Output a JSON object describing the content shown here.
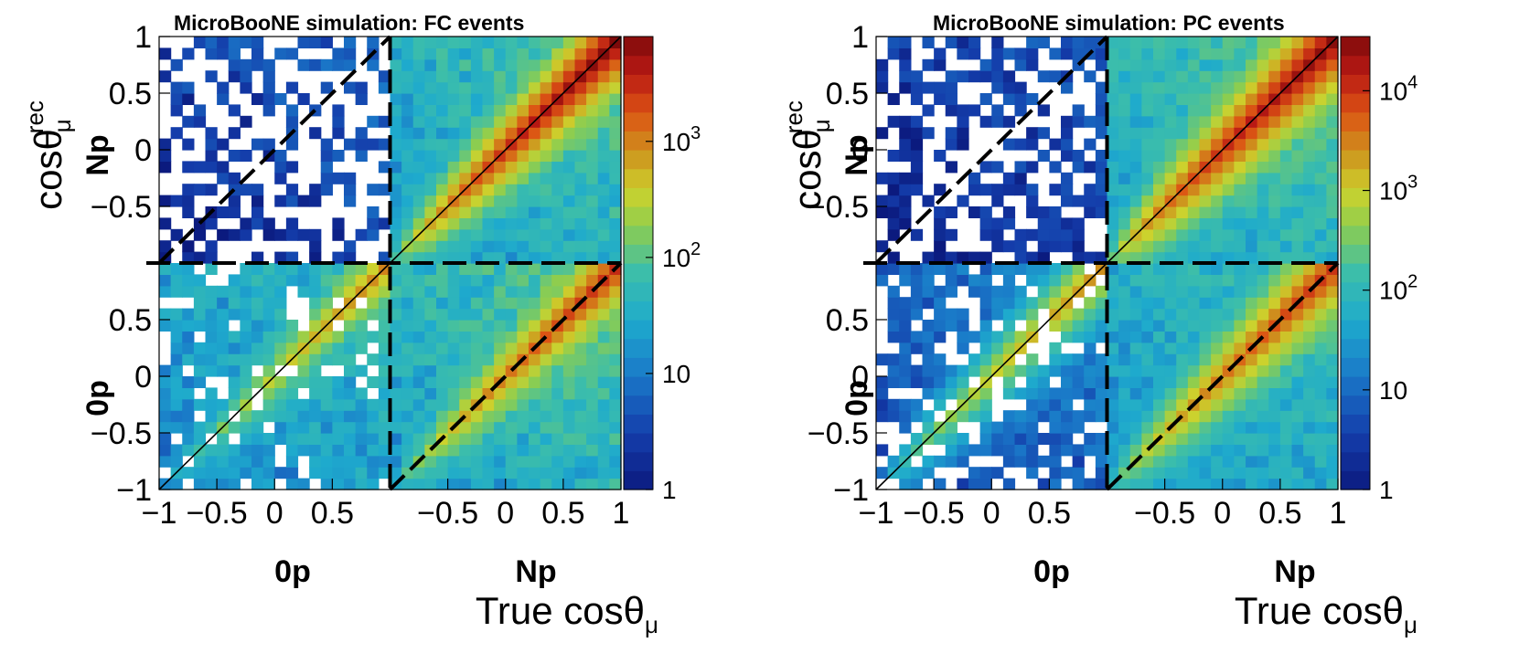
{
  "chart_data": [
    {
      "type": "heatmap",
      "title": "MicroBooNE simulation: FC events",
      "xlabel": "True cosθ",
      "xlabel_sub": "μ",
      "ylabel": "cosθ",
      "ylabel_sub": "μ",
      "ylabel_sup": "rec",
      "x_sections": [
        "0p",
        "Np"
      ],
      "y_sections": [
        "0p",
        "Np"
      ],
      "x_range_per_section": [
        -1,
        1
      ],
      "y_range_per_section": [
        -1,
        1
      ],
      "x_ticks": [
        {
          "v": -1,
          "label": "−1"
        },
        {
          "v": -0.5,
          "label": "−0.5"
        },
        {
          "v": 0,
          "label": "0"
        },
        {
          "v": 0.5,
          "label": "0.5"
        },
        {
          "v": -0.5,
          "label": "−0.5",
          "section": 1
        },
        {
          "v": 0,
          "label": "0",
          "section": 1
        },
        {
          "v": 0.5,
          "label": "0.5",
          "section": 1
        },
        {
          "v": 1,
          "label": "1",
          "section": 1
        }
      ],
      "y_ticks": [
        {
          "v": -1,
          "label": "−1"
        },
        {
          "v": -0.5,
          "label": "−0.5"
        },
        {
          "v": 0,
          "label": "0"
        },
        {
          "v": 0.5,
          "label": "0.5"
        },
        {
          "v": -0.5,
          "label": "−0.5",
          "section": 1
        },
        {
          "v": 0,
          "label": "0",
          "section": 1
        },
        {
          "v": 0.5,
          "label": "0.5",
          "section": 1
        },
        {
          "v": 1,
          "label": "1",
          "section": 1
        }
      ],
      "z_scale": "log",
      "z_range": [
        1,
        8000
      ],
      "z_ticks": [
        {
          "v": 1,
          "base": "1",
          "exp": ""
        },
        {
          "v": 10,
          "base": "10",
          "exp": ""
        },
        {
          "v": 100,
          "base": "10",
          "exp": "2"
        },
        {
          "v": 1000,
          "base": "10",
          "exp": "3"
        }
      ],
      "bins_per_section": 20,
      "blocks": {
        "true0p_rec0p": {
          "diag": 900,
          "bg": 25,
          "sparse": 0.15
        },
        "trueNp_rec0p": {
          "diag": 3000,
          "bg": 45,
          "sparse": 0.0
        },
        "true0p_recNp": {
          "diag": 0,
          "bg": 3,
          "sparse": 0.55
        },
        "trueNp_recNp": {
          "diag": 8000,
          "bg": 40,
          "sparse": 0.0
        }
      }
    },
    {
      "type": "heatmap",
      "title": "MicroBooNE simulation: PC events",
      "xlabel": "True cosθ",
      "xlabel_sub": "μ",
      "ylabel": "cosθ",
      "ylabel_sub": "μ",
      "ylabel_sup": "rec",
      "x_sections": [
        "0p",
        "Np"
      ],
      "y_sections": [
        "0p",
        "Np"
      ],
      "x_range_per_section": [
        -1,
        1
      ],
      "y_range_per_section": [
        -1,
        1
      ],
      "x_ticks": [
        {
          "v": -1,
          "label": "−1"
        },
        {
          "v": -0.5,
          "label": "−0.5"
        },
        {
          "v": 0,
          "label": "0"
        },
        {
          "v": 0.5,
          "label": "0.5"
        },
        {
          "v": -0.5,
          "label": "−0.5",
          "section": 1
        },
        {
          "v": 0,
          "label": "0",
          "section": 1
        },
        {
          "v": 0.5,
          "label": "0.5",
          "section": 1
        },
        {
          "v": 1,
          "label": "1",
          "section": 1
        }
      ],
      "y_ticks": [
        {
          "v": -1,
          "label": "−1"
        },
        {
          "v": -0.5,
          "label": "−0.5"
        },
        {
          "v": 0,
          "label": "0"
        },
        {
          "v": 0.5,
          "label": "0.5"
        },
        {
          "v": -0.5,
          "label": "−0.5",
          "section": 1
        },
        {
          "v": 0,
          "label": "0",
          "section": 1
        },
        {
          "v": 0.5,
          "label": "0.5",
          "section": 1
        },
        {
          "v": 1,
          "label": "1",
          "section": 1
        }
      ],
      "z_scale": "log",
      "z_range": [
        1,
        35000
      ],
      "z_ticks": [
        {
          "v": 1,
          "base": "1",
          "exp": ""
        },
        {
          "v": 10,
          "base": "10",
          "exp": ""
        },
        {
          "v": 100,
          "base": "10",
          "exp": "2"
        },
        {
          "v": 1000,
          "base": "10",
          "exp": "3"
        },
        {
          "v": 10000,
          "base": "10",
          "exp": "4"
        }
      ],
      "bins_per_section": 20,
      "blocks": {
        "true0p_rec0p": {
          "diag": 2500,
          "bg": 8,
          "sparse": 0.2
        },
        "trueNp_rec0p": {
          "diag": 10000,
          "bg": 60,
          "sparse": 0.0
        },
        "true0p_recNp": {
          "diag": 0,
          "bg": 3,
          "sparse": 0.45
        },
        "trueNp_recNp": {
          "diag": 30000,
          "bg": 90,
          "sparse": 0.0
        }
      }
    }
  ]
}
